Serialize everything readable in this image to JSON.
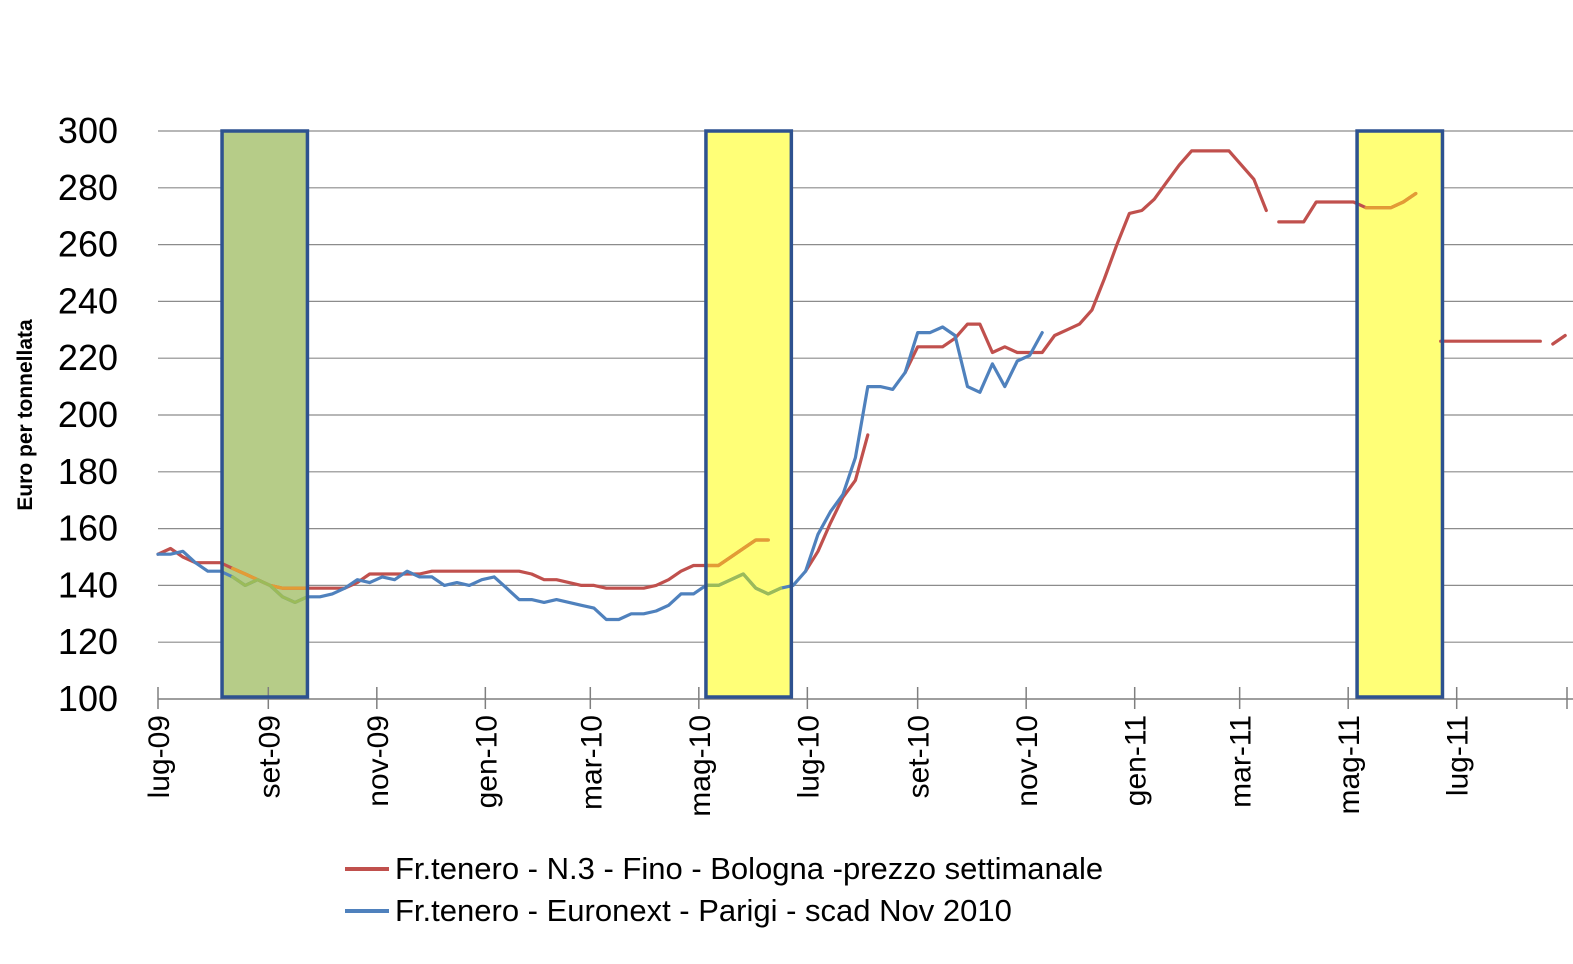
{
  "chart_data": {
    "type": "line",
    "title": "",
    "ylabel": "Euro per tonnellata",
    "xlabel": "",
    "ylim": [
      100,
      300
    ],
    "yticks": [
      100,
      120,
      140,
      160,
      180,
      200,
      220,
      240,
      260,
      280,
      300
    ],
    "x_range": [
      "2009-07-01",
      "2011-09-01"
    ],
    "xticks": [
      {
        "date": "2009-07-01",
        "label": "lug-09"
      },
      {
        "date": "2009-09-01",
        "label": "set-09"
      },
      {
        "date": "2009-11-01",
        "label": "nov-09"
      },
      {
        "date": "2010-01-01",
        "label": "gen-10"
      },
      {
        "date": "2010-03-01",
        "label": "mar-10"
      },
      {
        "date": "2010-05-01",
        "label": "mag-10"
      },
      {
        "date": "2010-07-01",
        "label": "lug-10"
      },
      {
        "date": "2010-09-01",
        "label": "set-10"
      },
      {
        "date": "2010-11-01",
        "label": "nov-10"
      },
      {
        "date": "2011-01-01",
        "label": "gen-11"
      },
      {
        "date": "2011-03-01",
        "label": "mar-11"
      },
      {
        "date": "2011-05-01",
        "label": "mag-11"
      },
      {
        "date": "2011-07-01",
        "label": "lug-11"
      }
    ],
    "grid": true,
    "legend_position": "bottom",
    "highlight_bands": [
      {
        "start": "2009-08-06",
        "end": "2009-09-23",
        "color": "#b6cc88"
      },
      {
        "start": "2010-05-05",
        "end": "2010-06-22",
        "color": "#ffff77"
      },
      {
        "start": "2011-05-06",
        "end": "2011-06-23",
        "color": "#ffff77"
      }
    ],
    "series": [
      {
        "name": "Fr.tenero - N.3 - Fino - Bologna -prezzo settimanale",
        "color": "#c0504d",
        "segments": [
          [
            [
              "2009-07-01",
              151
            ],
            [
              "2009-07-08",
              153
            ],
            [
              "2009-07-15",
              150
            ],
            [
              "2009-07-22",
              148
            ],
            [
              "2009-07-29",
              148
            ],
            [
              "2009-08-05",
              148
            ],
            [
              "2009-08-12",
              146
            ],
            [
              "2009-08-19",
              144
            ],
            [
              "2009-08-26",
              142
            ],
            [
              "2009-09-02",
              140
            ],
            [
              "2009-09-09",
              139
            ],
            [
              "2009-09-16",
              139
            ],
            [
              "2009-09-23",
              139
            ],
            [
              "2009-09-30",
              139
            ],
            [
              "2009-10-07",
              139
            ],
            [
              "2009-10-14",
              139
            ],
            [
              "2009-10-21",
              141
            ],
            [
              "2009-10-28",
              144
            ],
            [
              "2009-11-04",
              144
            ],
            [
              "2009-11-11",
              144
            ],
            [
              "2009-11-18",
              144
            ],
            [
              "2009-11-25",
              144
            ],
            [
              "2009-12-02",
              145
            ],
            [
              "2009-12-09",
              145
            ],
            [
              "2009-12-16",
              145
            ],
            [
              "2009-12-23",
              145
            ],
            [
              "2009-12-30",
              145
            ],
            [
              "2010-01-06",
              145
            ],
            [
              "2010-01-13",
              145
            ],
            [
              "2010-01-20",
              145
            ],
            [
              "2010-01-27",
              144
            ],
            [
              "2010-02-03",
              142
            ],
            [
              "2010-02-10",
              142
            ],
            [
              "2010-02-17",
              141
            ],
            [
              "2010-02-24",
              140
            ],
            [
              "2010-03-03",
              140
            ],
            [
              "2010-03-10",
              139
            ],
            [
              "2010-03-17",
              139
            ],
            [
              "2010-03-24",
              139
            ],
            [
              "2010-03-31",
              139
            ],
            [
              "2010-04-07",
              140
            ],
            [
              "2010-04-14",
              142
            ],
            [
              "2010-04-21",
              145
            ],
            [
              "2010-04-28",
              147
            ],
            [
              "2010-05-05",
              147
            ],
            [
              "2010-05-12",
              147
            ],
            [
              "2010-05-19",
              150
            ],
            [
              "2010-05-26",
              153
            ],
            [
              "2010-06-02",
              156
            ],
            [
              "2010-06-09",
              156
            ]
          ],
          [
            [
              "2010-06-30",
              145
            ],
            [
              "2010-07-07",
              152
            ],
            [
              "2010-07-14",
              162
            ],
            [
              "2010-07-21",
              171
            ],
            [
              "2010-07-28",
              177
            ],
            [
              "2010-08-04",
              193
            ]
          ],
          [
            [
              "2010-08-25",
              215
            ],
            [
              "2010-09-01",
              224
            ],
            [
              "2010-09-08",
              224
            ],
            [
              "2010-09-15",
              224
            ],
            [
              "2010-09-22",
              227
            ],
            [
              "2010-09-29",
              232
            ],
            [
              "2010-10-06",
              232
            ],
            [
              "2010-10-13",
              222
            ],
            [
              "2010-10-20",
              224
            ],
            [
              "2010-10-27",
              222
            ],
            [
              "2010-11-03",
              222
            ],
            [
              "2010-11-10",
              222
            ],
            [
              "2010-11-17",
              228
            ],
            [
              "2010-11-24",
              230
            ],
            [
              "2010-12-01",
              232
            ],
            [
              "2010-12-08",
              237
            ],
            [
              "2010-12-15",
              248
            ],
            [
              "2010-12-22",
              260
            ],
            [
              "2010-12-29",
              271
            ],
            [
              "2011-01-05",
              272
            ],
            [
              "2011-01-12",
              276
            ],
            [
              "2011-01-19",
              282
            ],
            [
              "2011-01-26",
              288
            ],
            [
              "2011-02-02",
              293
            ],
            [
              "2011-02-09",
              293
            ],
            [
              "2011-02-16",
              293
            ],
            [
              "2011-02-23",
              293
            ],
            [
              "2011-03-02",
              288
            ],
            [
              "2011-03-09",
              283
            ],
            [
              "2011-03-16",
              272
            ]
          ],
          [
            [
              "2011-03-23",
              268
            ],
            [
              "2011-03-30",
              268
            ],
            [
              "2011-04-06",
              268
            ],
            [
              "2011-04-13",
              275
            ],
            [
              "2011-04-20",
              275
            ],
            [
              "2011-04-27",
              275
            ],
            [
              "2011-05-04",
              275
            ],
            [
              "2011-05-11",
              273
            ],
            [
              "2011-05-18",
              273
            ],
            [
              "2011-05-25",
              273
            ],
            [
              "2011-06-01",
              275
            ],
            [
              "2011-06-08",
              278
            ]
          ],
          [
            [
              "2011-06-22",
              226
            ],
            [
              "2011-06-29",
              226
            ],
            [
              "2011-07-06",
              226
            ],
            [
              "2011-07-13",
              226
            ],
            [
              "2011-07-20",
              226
            ],
            [
              "2011-07-27",
              226
            ],
            [
              "2011-08-03",
              226
            ],
            [
              "2011-08-10",
              226
            ],
            [
              "2011-08-17",
              226
            ]
          ],
          [
            [
              "2011-08-24",
              225
            ],
            [
              "2011-08-31",
              228
            ]
          ]
        ]
      },
      {
        "name": "Fr.tenero - Euronext - Parigi - scad Nov 2010",
        "color": "#4f81bd",
        "segments": [
          [
            [
              "2009-07-01",
              151
            ],
            [
              "2009-07-08",
              151
            ],
            [
              "2009-07-15",
              152
            ],
            [
              "2009-07-22",
              148
            ],
            [
              "2009-07-29",
              145
            ],
            [
              "2009-08-05",
              145
            ],
            [
              "2009-08-12",
              143
            ],
            [
              "2009-08-19",
              140
            ],
            [
              "2009-08-26",
              142
            ],
            [
              "2009-09-02",
              140
            ],
            [
              "2009-09-09",
              136
            ],
            [
              "2009-09-16",
              134
            ],
            [
              "2009-09-23",
              136
            ],
            [
              "2009-09-30",
              136
            ],
            [
              "2009-10-07",
              137
            ],
            [
              "2009-10-14",
              139
            ],
            [
              "2009-10-21",
              142
            ],
            [
              "2009-10-28",
              141
            ],
            [
              "2009-11-04",
              143
            ],
            [
              "2009-11-11",
              142
            ],
            [
              "2009-11-18",
              145
            ],
            [
              "2009-11-25",
              143
            ],
            [
              "2009-12-02",
              143
            ],
            [
              "2009-12-09",
              140
            ],
            [
              "2009-12-16",
              141
            ],
            [
              "2009-12-23",
              140
            ],
            [
              "2009-12-30",
              142
            ],
            [
              "2010-01-06",
              143
            ],
            [
              "2010-01-13",
              139
            ],
            [
              "2010-01-20",
              135
            ],
            [
              "2010-01-27",
              135
            ],
            [
              "2010-02-03",
              134
            ],
            [
              "2010-02-10",
              135
            ],
            [
              "2010-02-17",
              134
            ],
            [
              "2010-02-24",
              133
            ],
            [
              "2010-03-03",
              132
            ],
            [
              "2010-03-10",
              128
            ],
            [
              "2010-03-17",
              128
            ],
            [
              "2010-03-24",
              130
            ],
            [
              "2010-03-31",
              130
            ],
            [
              "2010-04-07",
              131
            ],
            [
              "2010-04-14",
              133
            ],
            [
              "2010-04-21",
              137
            ],
            [
              "2010-04-28",
              137
            ],
            [
              "2010-05-05",
              140
            ],
            [
              "2010-05-12",
              140
            ],
            [
              "2010-05-19",
              142
            ],
            [
              "2010-05-26",
              144
            ],
            [
              "2010-06-02",
              139
            ],
            [
              "2010-06-09",
              137
            ],
            [
              "2010-06-16",
              139
            ],
            [
              "2010-06-23",
              140
            ],
            [
              "2010-06-30",
              145
            ],
            [
              "2010-07-07",
              158
            ],
            [
              "2010-07-14",
              166
            ],
            [
              "2010-07-21",
              172
            ],
            [
              "2010-07-28",
              185
            ],
            [
              "2010-08-04",
              210
            ],
            [
              "2010-08-11",
              210
            ],
            [
              "2010-08-18",
              209
            ],
            [
              "2010-08-25",
              215
            ],
            [
              "2010-09-01",
              229
            ],
            [
              "2010-09-08",
              229
            ],
            [
              "2010-09-15",
              231
            ],
            [
              "2010-09-22",
              228
            ],
            [
              "2010-09-29",
              210
            ],
            [
              "2010-10-06",
              208
            ],
            [
              "2010-10-13",
              218
            ],
            [
              "2010-10-20",
              210
            ],
            [
              "2010-10-27",
              219
            ],
            [
              "2010-11-03",
              221
            ],
            [
              "2010-11-10",
              229
            ]
          ]
        ]
      }
    ]
  }
}
